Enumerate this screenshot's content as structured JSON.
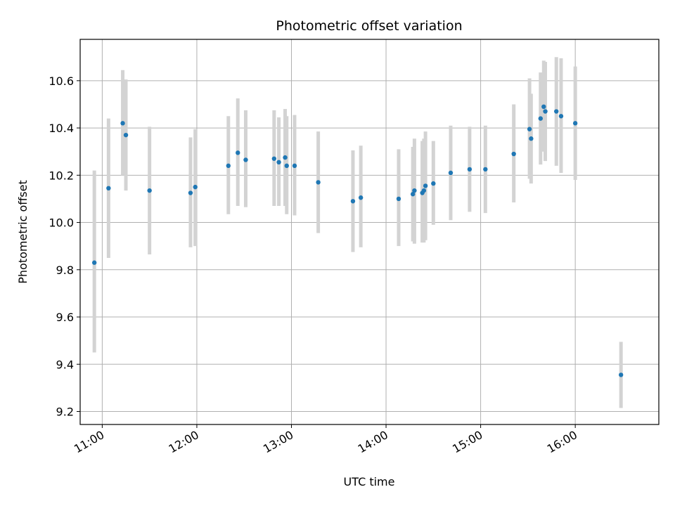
{
  "chart_data": {
    "type": "scatter",
    "title": "Photometric offset variation",
    "xlabel": "UTC time",
    "ylabel": "Photometric offset",
    "xlim": [
      "10:46",
      "16:53"
    ],
    "ylim": [
      9.145,
      10.775
    ],
    "x_ticks": [
      "11:00",
      "12:00",
      "13:00",
      "14:00",
      "15:00",
      "16:00"
    ],
    "y_ticks": [
      9.2,
      9.4,
      9.6,
      9.8,
      10.0,
      10.2,
      10.4,
      10.6
    ],
    "grid": true,
    "marker_color": "#1f77b4",
    "errorbar_color": "#d3d3d3",
    "points": [
      {
        "time": "10:55",
        "value": 9.83,
        "low": 9.45,
        "high": 10.22
      },
      {
        "time": "11:04",
        "value": 10.145,
        "low": 9.85,
        "high": 10.44
      },
      {
        "time": "11:13",
        "value": 10.42,
        "low": 10.2,
        "high": 10.645
      },
      {
        "time": "11:15",
        "value": 10.37,
        "low": 10.135,
        "high": 10.605
      },
      {
        "time": "11:30",
        "value": 10.135,
        "low": 9.865,
        "high": 10.405
      },
      {
        "time": "11:56",
        "value": 10.125,
        "low": 9.895,
        "high": 10.36
      },
      {
        "time": "11:59",
        "value": 10.15,
        "low": 9.9,
        "high": 10.395
      },
      {
        "time": "12:20",
        "value": 10.24,
        "low": 10.035,
        "high": 10.45
      },
      {
        "time": "12:26",
        "value": 10.295,
        "low": 10.07,
        "high": 10.525
      },
      {
        "time": "12:31",
        "value": 10.265,
        "low": 10.065,
        "high": 10.475
      },
      {
        "time": "12:49",
        "value": 10.27,
        "low": 10.07,
        "high": 10.475
      },
      {
        "time": "12:52",
        "value": 10.255,
        "low": 10.07,
        "high": 10.445
      },
      {
        "time": "12:56",
        "value": 10.275,
        "low": 10.07,
        "high": 10.48
      },
      {
        "time": "12:57",
        "value": 10.24,
        "low": 10.035,
        "high": 10.45
      },
      {
        "time": "13:02",
        "value": 10.24,
        "low": 10.03,
        "high": 10.455
      },
      {
        "time": "13:17",
        "value": 10.17,
        "low": 9.955,
        "high": 10.385
      },
      {
        "time": "13:39",
        "value": 10.09,
        "low": 9.875,
        "high": 10.305
      },
      {
        "time": "13:44",
        "value": 10.105,
        "low": 9.895,
        "high": 10.325
      },
      {
        "time": "14:08",
        "value": 10.1,
        "low": 9.9,
        "high": 10.31
      },
      {
        "time": "14:17",
        "value": 10.12,
        "low": 9.92,
        "high": 10.32
      },
      {
        "time": "14:18",
        "value": 10.135,
        "low": 9.91,
        "high": 10.355
      },
      {
        "time": "14:23",
        "value": 10.125,
        "low": 9.915,
        "high": 10.345
      },
      {
        "time": "14:24",
        "value": 10.135,
        "low": 9.915,
        "high": 10.355
      },
      {
        "time": "14:25",
        "value": 10.155,
        "low": 9.925,
        "high": 10.385
      },
      {
        "time": "14:30",
        "value": 10.165,
        "low": 9.99,
        "high": 10.345
      },
      {
        "time": "14:41",
        "value": 10.21,
        "low": 10.01,
        "high": 10.41
      },
      {
        "time": "14:53",
        "value": 10.225,
        "low": 10.045,
        "high": 10.405
      },
      {
        "time": "15:03",
        "value": 10.225,
        "low": 10.04,
        "high": 10.41
      },
      {
        "time": "15:21",
        "value": 10.29,
        "low": 10.085,
        "high": 10.5
      },
      {
        "time": "15:31",
        "value": 10.395,
        "low": 10.185,
        "high": 10.61
      },
      {
        "time": "15:32",
        "value": 10.355,
        "low": 10.165,
        "high": 10.545
      },
      {
        "time": "15:38",
        "value": 10.44,
        "low": 10.245,
        "high": 10.635
      },
      {
        "time": "15:40",
        "value": 10.49,
        "low": 10.3,
        "high": 10.685
      },
      {
        "time": "15:41",
        "value": 10.47,
        "low": 10.26,
        "high": 10.68
      },
      {
        "time": "15:48",
        "value": 10.47,
        "low": 10.24,
        "high": 10.7
      },
      {
        "time": "15:51",
        "value": 10.45,
        "low": 10.21,
        "high": 10.695
      },
      {
        "time": "16:00",
        "value": 10.42,
        "low": 10.18,
        "high": 10.66
      },
      {
        "time": "16:29",
        "value": 9.355,
        "low": 9.215,
        "high": 9.495
      }
    ]
  }
}
